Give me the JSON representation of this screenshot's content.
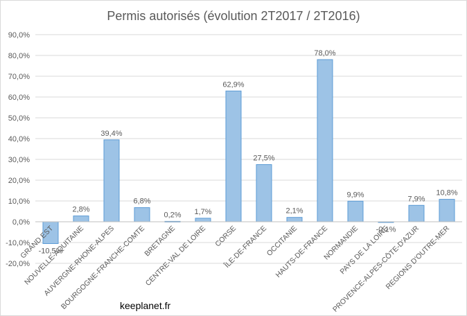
{
  "chart_data": {
    "type": "bar",
    "title": "Permis autorisés (évolution 2T2017 / 2T2016)",
    "categories": [
      "GRAND EST",
      "NOUVELLE-AQUITAINE",
      "AUVERGNE-RHONE-ALPES",
      "BOURGOGNE-FRANCHE-COMTE",
      "BRETAGNE",
      "CENTRE-VAL DE LOIRE",
      "CORSE",
      "ÎLE-DE-FRANCE",
      "OCCITANIE",
      "HAUTS-DE-FRANCE",
      "NORMANDIE",
      "PAYS DE LA LOIRE",
      "PROVENCE-ALPES-CÔTE-D'AZUR",
      "REGIONS D'OUTRE-MER"
    ],
    "values": [
      -10.5,
      2.8,
      39.4,
      6.8,
      0.2,
      1.7,
      62.9,
      27.5,
      2.1,
      78.0,
      9.9,
      -0.1,
      7.9,
      10.8
    ],
    "data_labels": [
      "-10,5%",
      "2,8%",
      "39,4%",
      "6,8%",
      "0,2%",
      "1,7%",
      "62,9%",
      "27,5%",
      "2,1%",
      "78,0%",
      "9,9%",
      "-0,1%",
      "7,9%",
      "10,8%"
    ],
    "ylim": [
      -20,
      90
    ],
    "yticks": [
      -20,
      -10,
      0,
      10,
      20,
      30,
      40,
      50,
      60,
      70,
      80,
      90
    ],
    "ytick_labels": [
      "-20,0%",
      "-10,0%",
      "0,0%",
      "10,0%",
      "20,0%",
      "30,0%",
      "40,0%",
      "50,0%",
      "60,0%",
      "70,0%",
      "80,0%",
      "90,0%"
    ],
    "xlabel": "",
    "ylabel": "",
    "grid": true,
    "legend": false,
    "colors": {
      "bar_fill": "#9dc3e6",
      "bar_stroke": "#5b9bd5",
      "grid": "#d9d9d9",
      "text": "#595959"
    }
  },
  "source": "keeplanet.fr"
}
